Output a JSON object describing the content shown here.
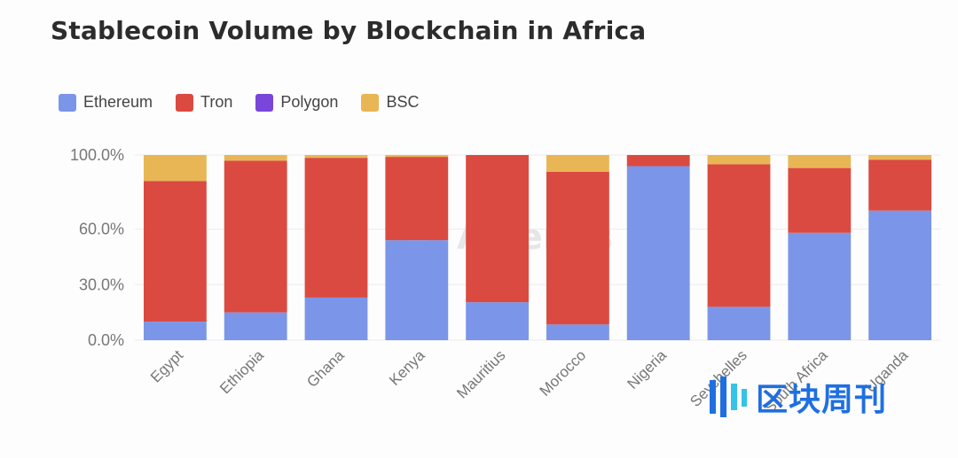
{
  "title": "Stablecoin Volume by Blockchain in Africa",
  "legend": [
    {
      "label": "Ethereum",
      "color": "#7b96e8"
    },
    {
      "label": "Tron",
      "color": "#db4a41"
    },
    {
      "label": "Polygon",
      "color": "#7a45db"
    },
    {
      "label": "BSC",
      "color": "#e9b655"
    }
  ],
  "watermark": {
    "text": "Artemis",
    "logo_letter": "A"
  },
  "brand": {
    "text": "区块周刊"
  },
  "chart_data": {
    "type": "bar",
    "stacked": true,
    "categories": [
      "Egypt",
      "Ethiopia",
      "Ghana",
      "Kenya",
      "Mauritius",
      "Morocco",
      "Nigeria",
      "Seychelles",
      "South Africa",
      "Uganda"
    ],
    "series": [
      {
        "name": "Ethereum",
        "color": "#7b96e8",
        "values": [
          10.0,
          15.0,
          23.0,
          54.0,
          20.5,
          8.5,
          94.0,
          18.0,
          58.0,
          70.0
        ]
      },
      {
        "name": "Tron",
        "color": "#db4a41",
        "values": [
          76.0,
          82.0,
          75.5,
          45.0,
          79.5,
          82.5,
          6.0,
          77.0,
          35.0,
          27.5
        ]
      },
      {
        "name": "Polygon",
        "color": "#7a45db",
        "values": [
          0,
          0,
          0,
          0,
          0,
          0,
          0,
          0,
          0,
          0
        ]
      },
      {
        "name": "BSC",
        "color": "#e9b655",
        "values": [
          14.0,
          3.0,
          1.5,
          1.0,
          0,
          9.0,
          0,
          5.0,
          7.0,
          2.5
        ]
      }
    ],
    "yticks": [
      "0.0%",
      "30.0%",
      "60.0%",
      "100.0%"
    ],
    "ylim": [
      0,
      100
    ],
    "xlabel": "",
    "ylabel": "",
    "legend_position": "top-left"
  }
}
